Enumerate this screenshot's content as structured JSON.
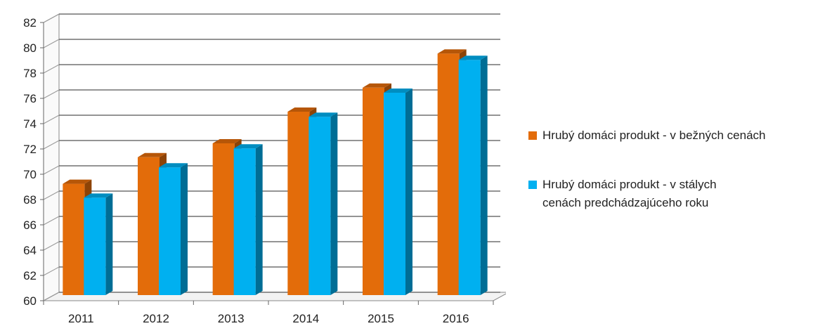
{
  "colors": {
    "series1": "#e36c0a",
    "series2": "#00b0f0"
  },
  "chart_data": {
    "type": "bar",
    "categories": [
      "2011",
      "2012",
      "2013",
      "2014",
      "2015",
      "2016"
    ],
    "series": [
      {
        "name": "Hrubý domáci produkt - v bežných cenách",
        "values": [
          68.8,
          70.9,
          72.0,
          74.5,
          76.4,
          79.1
        ]
      },
      {
        "name": "Hrubý domáci produkt - v stálych cenách predchádzajúceho roku",
        "values": [
          67.7,
          70.1,
          71.6,
          74.1,
          76.0,
          78.6
        ]
      }
    ],
    "yticks": [
      60,
      62,
      64,
      66,
      68,
      70,
      72,
      74,
      76,
      78,
      80,
      82
    ],
    "ylim": [
      60,
      82
    ],
    "grid": true,
    "legend_position": "right",
    "title": "",
    "xlabel": "",
    "ylabel": ""
  }
}
